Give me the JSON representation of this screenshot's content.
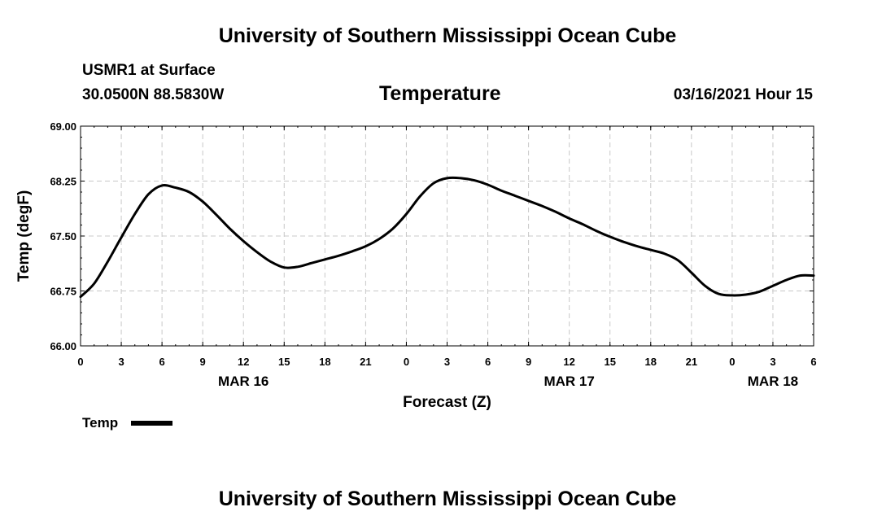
{
  "header": {
    "top_title": "University of Southern Mississippi Ocean Cube",
    "station": "USMR1 at Surface",
    "coords": "30.0500N 88.5830W",
    "variable": "Temperature",
    "run_time": "03/16/2021 Hour 15",
    "bottom_title": "University of Southern Mississippi Ocean Cube"
  },
  "chart_data": {
    "type": "line",
    "title": "Temperature",
    "xlabel": "Forecast (Z)",
    "ylabel": "Temp (degF)",
    "ylim": [
      66.0,
      69.0
    ],
    "y_ticks": [
      "66.00",
      "66.75",
      "67.50",
      "68.25",
      "69.00"
    ],
    "x_range_hours": [
      0,
      54
    ],
    "x_tick_labels": [
      "0",
      "3",
      "6",
      "9",
      "12",
      "15",
      "18",
      "21",
      "0",
      "3",
      "6",
      "9",
      "12",
      "15",
      "18",
      "21",
      "0",
      "3",
      "6"
    ],
    "date_labels": [
      {
        "hour": 12,
        "label": "MAR 16"
      },
      {
        "hour": 36,
        "label": "MAR 17"
      },
      {
        "hour": 51,
        "label": "MAR 18"
      }
    ],
    "grid": true,
    "legend": {
      "position": "bottom-left",
      "entries": [
        "Temp"
      ]
    },
    "series": [
      {
        "name": "Temp",
        "color": "#000000",
        "x": [
          0,
          1,
          2,
          3,
          4,
          5,
          6,
          7,
          8,
          9,
          10,
          11,
          12,
          13,
          14,
          15,
          16,
          17,
          18,
          19,
          20,
          21,
          22,
          23,
          24,
          25,
          26,
          27,
          28,
          29,
          30,
          31,
          32,
          33,
          34,
          35,
          36,
          37,
          38,
          39,
          40,
          41,
          42,
          43,
          44,
          45,
          46,
          47,
          48,
          49,
          50,
          51,
          52,
          53,
          54
        ],
        "values": [
          66.67,
          66.85,
          67.15,
          67.48,
          67.8,
          68.07,
          68.19,
          68.16,
          68.1,
          67.97,
          67.79,
          67.6,
          67.43,
          67.28,
          67.15,
          67.07,
          67.08,
          67.13,
          67.18,
          67.23,
          67.29,
          67.36,
          67.46,
          67.6,
          67.8,
          68.04,
          68.22,
          68.29,
          68.29,
          68.26,
          68.2,
          68.12,
          68.05,
          67.98,
          67.91,
          67.83,
          67.74,
          67.66,
          67.57,
          67.49,
          67.42,
          67.36,
          67.31,
          67.26,
          67.17,
          67.0,
          66.82,
          66.71,
          66.69,
          66.7,
          66.74,
          66.82,
          66.9,
          66.96,
          66.96
        ]
      }
    ]
  }
}
